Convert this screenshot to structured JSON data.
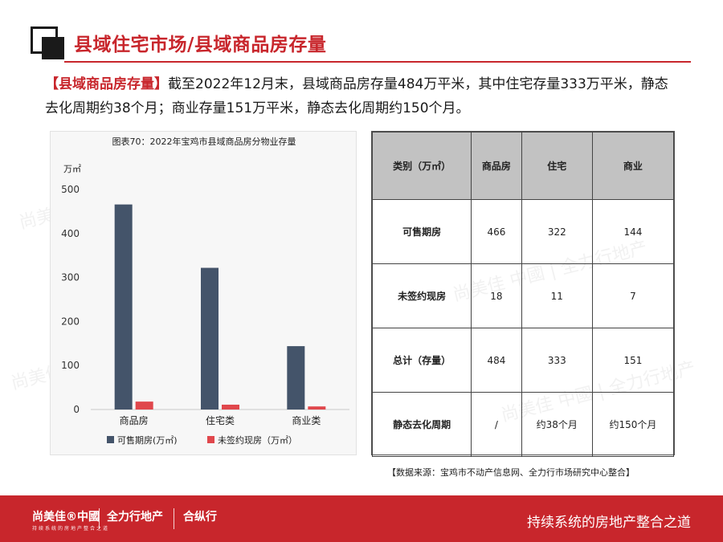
{
  "header": {
    "title": "县域住宅市场/县域商品房存量"
  },
  "summary": {
    "tag": "【县域商品房存量】",
    "text": "截至2022年12月末，县域商品房存量484万平米，其中住宅存量333万平米，静态去化周期约38个月；商业存量151万平米，静态去化周期约150个月。"
  },
  "chart_data": {
    "type": "bar",
    "title": "图表70：2022年宝鸡市县域商品房分物业存量",
    "ylabel": "万㎡",
    "categories": [
      "商品房",
      "住宅类",
      "商业类"
    ],
    "ylim": [
      0,
      500
    ],
    "yticks": [
      "0",
      "100",
      "200",
      "300",
      "400",
      "500"
    ],
    "series": [
      {
        "name": "可售期房(万㎡)",
        "color": "#44546a",
        "values": [
          466,
          322,
          144
        ]
      },
      {
        "name": "未签约现房（万㎡）",
        "color": "#e0474c",
        "values": [
          18,
          11,
          7
        ]
      }
    ],
    "legend": "bottom"
  },
  "table": {
    "headers": [
      "类别（万㎡）",
      "商品房",
      "住宅",
      "商业"
    ],
    "rows": [
      [
        "可售期房",
        "466",
        "322",
        "144"
      ],
      [
        "未签约现房",
        "18",
        "11",
        "7"
      ],
      [
        "总计（存量）",
        "484",
        "333",
        "151"
      ],
      [
        "静态去化周期",
        "/",
        "约38个月",
        "约150个月"
      ]
    ]
  },
  "source": "【数据来源：宝鸡市不动产信息网、全力行市场研究中心整合】",
  "footer": {
    "brand1": "尚美佳®中國",
    "brand2": "全力行地产",
    "brand3": "合纵行",
    "brand_sub": "持续系统的房地产整合之道",
    "slogan": "持续系统的房地产整合之道"
  },
  "colors": {
    "accent": "#c8262c",
    "bar_primary": "#44546a",
    "bar_secondary": "#e0474c"
  }
}
